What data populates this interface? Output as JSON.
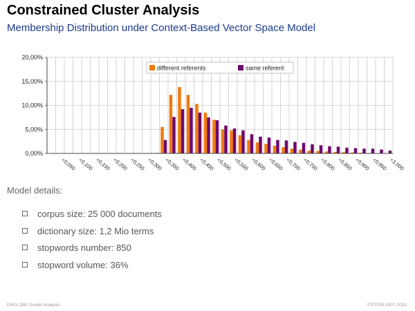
{
  "slide": {
    "title": "Constrained Cluster Analysis",
    "subtitle": "Membership Distribution under Context-Based Vector Space Model"
  },
  "details": {
    "heading": "Model details:",
    "items": [
      "corpus size: 25 000 documents",
      "dictionary size: 1,2 Mio terms",
      "stopwords number: 850",
      "stopword volume: 36%"
    ]
  },
  "footer": {
    "left": "DM:II-288   Cluster Analysis",
    "right": "©STEIN 2007-2020"
  },
  "chart_data": {
    "type": "bar",
    "categories": [
      "0,050",
      "0,100",
      "0,150",
      "0,200",
      "0,250",
      "0,300",
      "0,350",
      "0,400",
      "0,450",
      "0,500",
      "0,550",
      "0,600",
      "0,650",
      "0,700",
      "0,750",
      "0,800",
      "0,850",
      "0,900",
      "0,950",
      "1,000"
    ],
    "x": [
      0.025,
      0.05,
      0.075,
      0.1,
      0.125,
      0.15,
      0.175,
      0.2,
      0.225,
      0.25,
      0.275,
      0.3,
      0.325,
      0.35,
      0.375,
      0.4,
      0.425,
      0.45,
      0.475,
      0.5,
      0.525,
      0.55,
      0.575,
      0.6,
      0.625,
      0.65,
      0.675,
      0.7,
      0.725,
      0.75,
      0.775,
      0.8,
      0.825,
      0.85,
      0.875,
      0.9,
      0.925,
      0.95,
      0.975,
      1.0
    ],
    "tick_labels": [
      "<0,050",
      "<0,100",
      "<0,150",
      "<0,200",
      "<0,250",
      "<0,300",
      "<0,350",
      "<0,400",
      "<0,450",
      "<0,500",
      "<0,550",
      "<0,600",
      "<0,650",
      "<0,700",
      "<0,750",
      "<0,800",
      "<0,850",
      "<0,900",
      "<0,950",
      "<1,000"
    ],
    "series": [
      {
        "name": "different referents",
        "color": "#f07b0e",
        "values": [
          0,
          0,
          0,
          0,
          0,
          0,
          0,
          0,
          0,
          0,
          0,
          0,
          0,
          5.5,
          12.2,
          13.8,
          12.2,
          10.3,
          8.5,
          7.0,
          5.0,
          4.8,
          3.8,
          2.8,
          2.3,
          2.0,
          1.6,
          1.3,
          1.0,
          0.8,
          0.6,
          0.5,
          0.4,
          0.3,
          0.25,
          0.2,
          0.15,
          0.1,
          0.08,
          0.05
        ]
      },
      {
        "name": "same referent",
        "color": "#6c0a6e",
        "values": [
          0,
          0,
          0,
          0,
          0,
          0,
          0,
          0,
          0,
          0,
          0,
          0,
          0.1,
          2.8,
          7.6,
          9.2,
          9.5,
          8.5,
          7.5,
          6.9,
          5.8,
          5.2,
          4.8,
          4.0,
          3.5,
          3.3,
          2.8,
          2.7,
          2.4,
          2.2,
          1.9,
          1.7,
          1.5,
          1.4,
          1.2,
          1.1,
          1.0,
          1.0,
          0.8,
          0.6
        ]
      }
    ],
    "ylim": [
      0,
      20
    ],
    "y_ticks": [
      "0,00%",
      "5,00%",
      "10,00%",
      "15,00%",
      "20,00%"
    ],
    "y_tick_values": [
      0,
      5,
      10,
      15,
      20
    ],
    "grid": true,
    "legend": "top-right"
  }
}
